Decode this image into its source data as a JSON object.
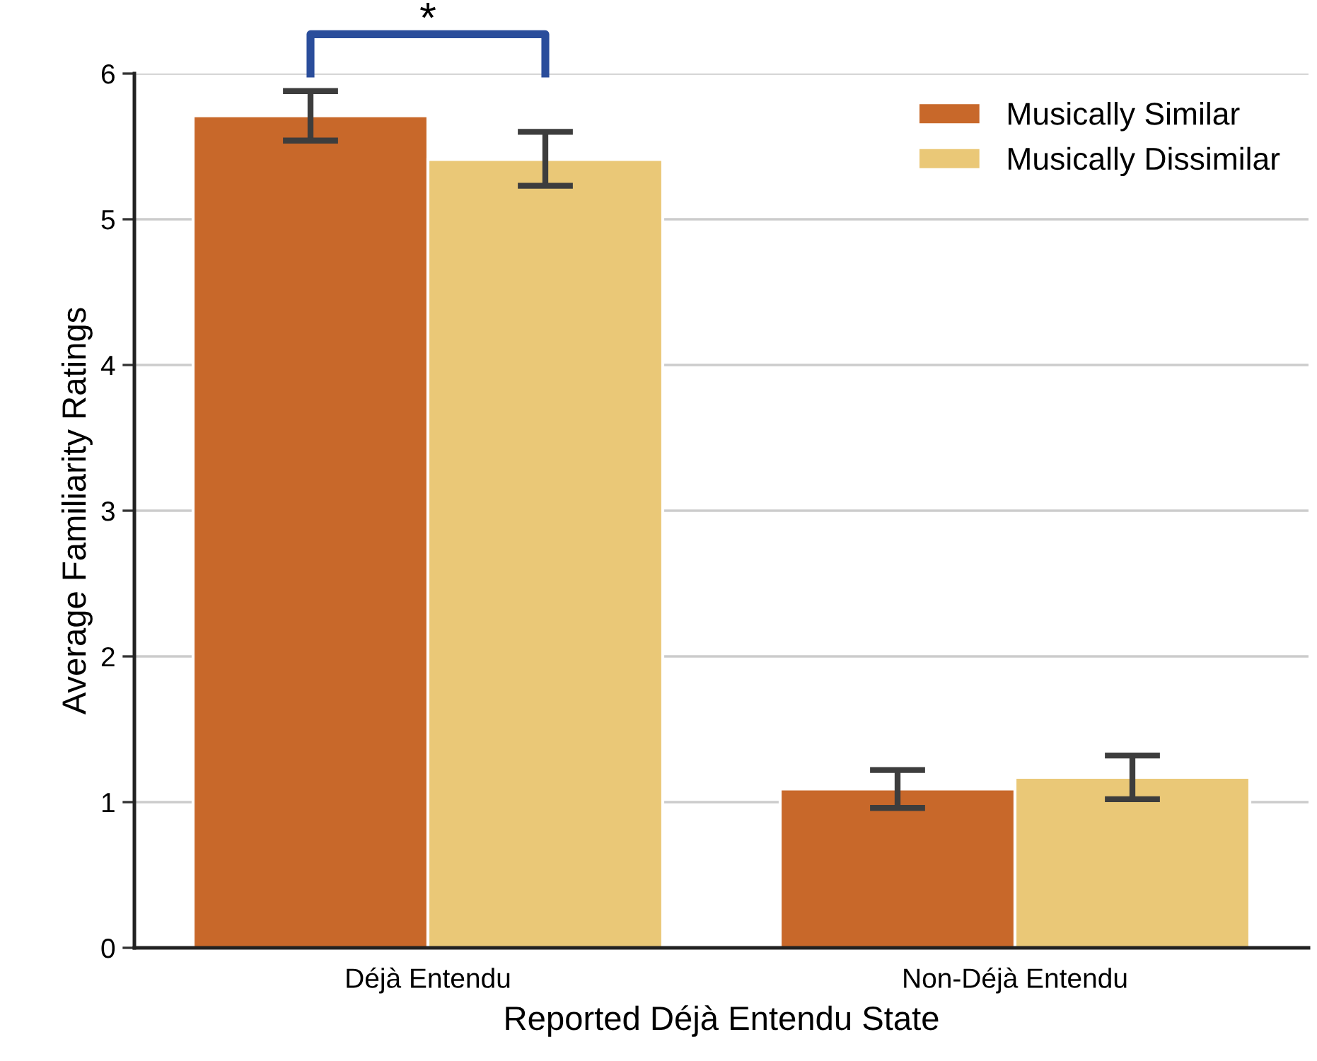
{
  "chart_data": {
    "type": "bar",
    "xlabel": "Reported Déjà Entendu State",
    "ylabel": "Average Familiarity Ratings",
    "categories": [
      "Déjà Entendu",
      "Non-Déjà Entendu"
    ],
    "series": [
      {
        "name": "Musically Similar",
        "color": "#c8682a",
        "values": [
          5.71,
          1.09
        ],
        "errors": [
          [
            5.54,
            5.88
          ],
          [
            0.96,
            1.22
          ]
        ]
      },
      {
        "name": "Musically Dissimilar",
        "color": "#eac877",
        "values": [
          5.41,
          1.17
        ],
        "errors": [
          [
            5.23,
            5.6
          ],
          [
            1.02,
            1.32
          ]
        ]
      }
    ],
    "ylim": [
      0,
      6
    ],
    "yticks": [
      0,
      1,
      2,
      3,
      4,
      5,
      6
    ],
    "grid": "y",
    "legend": "top right",
    "annotations": [
      "*"
    ]
  }
}
